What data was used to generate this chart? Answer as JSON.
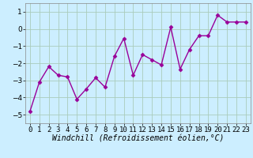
{
  "x": [
    0,
    1,
    2,
    3,
    4,
    5,
    6,
    7,
    8,
    9,
    10,
    11,
    12,
    13,
    14,
    15,
    16,
    17,
    18,
    19,
    20,
    21,
    22,
    23
  ],
  "y": [
    -4.8,
    -3.1,
    -2.2,
    -2.7,
    -2.8,
    -4.1,
    -3.5,
    -2.85,
    -3.4,
    -1.6,
    -0.55,
    -2.7,
    -1.5,
    -1.8,
    -2.1,
    0.1,
    -2.35,
    -1.2,
    -0.4,
    -0.4,
    0.8,
    0.4,
    0.4,
    0.4
  ],
  "line_color": "#990099",
  "marker": "D",
  "marker_size": 2.5,
  "bg_color": "#cceeff",
  "grid_color": "#aaccbb",
  "xlabel": "Windchill (Refroidissement éolien,°C)",
  "ylim": [
    -5.5,
    1.5
  ],
  "yticks": [
    -5,
    -4,
    -3,
    -2,
    -1,
    0,
    1
  ],
  "xtick_labels": [
    "0",
    "1",
    "2",
    "3",
    "4",
    "5",
    "6",
    "7",
    "8",
    "9",
    "10",
    "11",
    "12",
    "13",
    "14",
    "15",
    "16",
    "17",
    "18",
    "19",
    "20",
    "21",
    "22",
    "23"
  ],
  "xlabel_fontsize": 7.0,
  "tick_fontsize": 6.5,
  "linewidth": 1.0
}
